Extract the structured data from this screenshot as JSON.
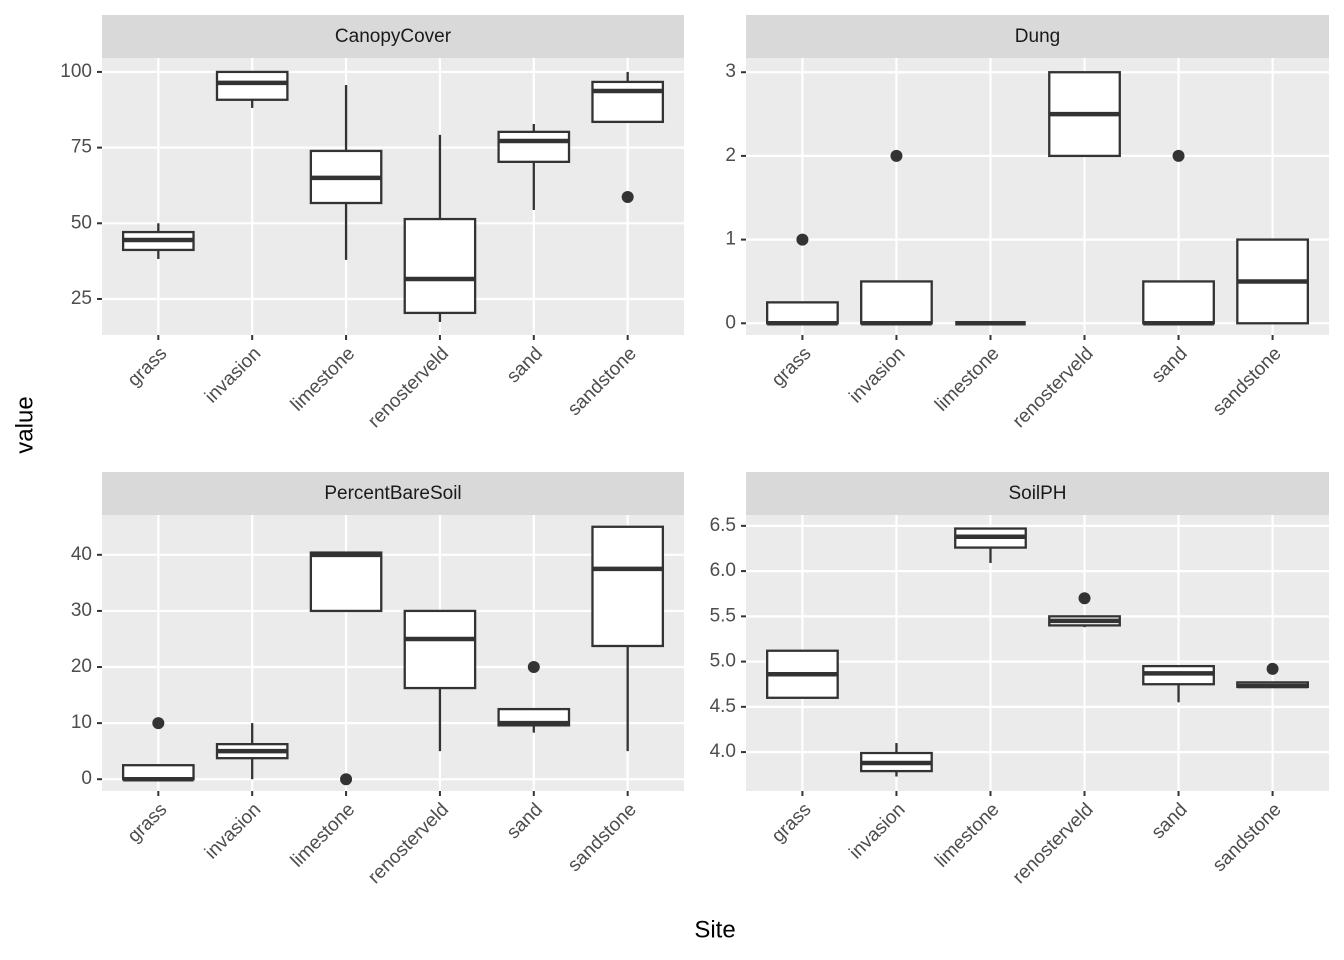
{
  "xlabel": "Site",
  "ylabel": "value",
  "chart_data": [
    {
      "type": "box",
      "title": "CanopyCover",
      "categories": [
        "grass",
        "invasion",
        "limestone",
        "renosterveld",
        "sand",
        "sandstone"
      ],
      "min": [
        38.2,
        88.1,
        37.9,
        17.4,
        54.4,
        83.5
      ],
      "q1": [
        41.2,
        90.8,
        56.7,
        20.4,
        70.3,
        83.5
      ],
      "median": [
        44.5,
        96.4,
        65,
        31.6,
        77.2,
        93.7
      ],
      "q3": [
        47.1,
        100,
        73.9,
        51.4,
        80.2,
        96.7
      ],
      "max": [
        50,
        100,
        95.7,
        79.2,
        82.8,
        100
      ],
      "outliers": [
        [],
        [],
        [],
        [],
        [],
        [
          58.7
        ]
      ],
      "ylim": [
        13.1,
        104.6
      ],
      "yticks": [
        25,
        50,
        75,
        100
      ]
    },
    {
      "type": "box",
      "title": "Dung",
      "categories": [
        "grass",
        "invasion",
        "limestone",
        "renosterveld",
        "sand",
        "sandstone"
      ],
      "min": [
        0,
        0,
        0,
        2,
        0,
        0
      ],
      "q1": [
        0,
        0,
        0,
        2,
        0,
        0
      ],
      "median": [
        0,
        0,
        0,
        2.5,
        0,
        0.5
      ],
      "q3": [
        0.25,
        0.5,
        0,
        3,
        0.5,
        1
      ],
      "max": [
        0.25,
        0.5,
        0,
        3,
        0.5,
        1
      ],
      "outliers": [
        [
          1
        ],
        [
          2
        ],
        [],
        [],
        [
          2
        ],
        []
      ],
      "ylim": [
        -0.14,
        3.17
      ],
      "yticks": [
        0,
        1,
        2,
        3
      ]
    },
    {
      "type": "box",
      "title": "PercentBareSoil",
      "categories": [
        "grass",
        "invasion",
        "limestone",
        "renosterveld",
        "sand",
        "sandstone"
      ],
      "min": [
        0,
        0,
        30,
        5,
        8.3,
        5
      ],
      "q1": [
        0,
        3.75,
        30,
        16.25,
        9.6,
        23.75
      ],
      "median": [
        0,
        5,
        40,
        25,
        10,
        37.5
      ],
      "q3": [
        2.5,
        6.25,
        40.4,
        30,
        12.5,
        45
      ],
      "max": [
        2.5,
        10,
        40.4,
        30,
        12.5,
        45
      ],
      "outliers": [
        [
          10
        ],
        [],
        [
          0
        ],
        [],
        [
          20
        ],
        []
      ],
      "ylim": [
        -2.1,
        47.1
      ],
      "yticks": [
        0,
        10,
        20,
        30,
        40
      ]
    },
    {
      "type": "box",
      "title": "SoilPH",
      "categories": [
        "grass",
        "invasion",
        "limestone",
        "renosterveld",
        "sand",
        "sandstone"
      ],
      "min": [
        4.59,
        3.73,
        6.09,
        5.38,
        4.55,
        4.72
      ],
      "q1": [
        4.6,
        3.79,
        6.26,
        5.4,
        4.75,
        4.72
      ],
      "median": [
        4.86,
        3.88,
        6.38,
        5.45,
        4.87,
        4.73
      ],
      "q3": [
        5.12,
        3.99,
        6.47,
        5.5,
        4.95,
        4.77
      ],
      "max": [
        5.12,
        4.1,
        6.47,
        5.5,
        4.95,
        4.77
      ],
      "outliers": [
        [],
        [],
        [],
        [
          5.7
        ],
        [],
        [
          4.92
        ]
      ],
      "ylim": [
        3.57,
        6.62
      ],
      "yticks": [
        {
          "value": 4,
          "label": "4.0"
        },
        4.5,
        {
          "value": 5,
          "label": "5.0"
        },
        5.5,
        {
          "value": 6,
          "label": "6.0"
        },
        6.5
      ]
    }
  ]
}
